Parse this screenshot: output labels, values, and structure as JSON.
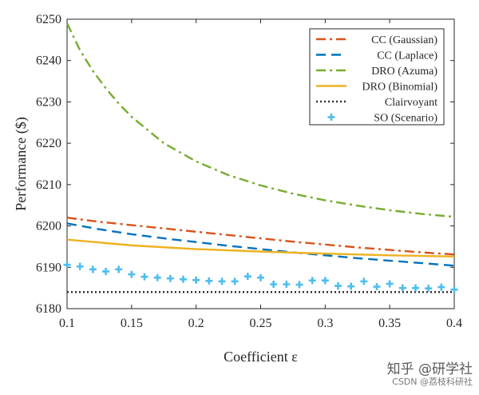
{
  "chart_data": {
    "type": "line",
    "title": "",
    "xlabel": "Coefficient ε",
    "ylabel": "Performance ($)",
    "xlim": [
      0.1,
      0.4
    ],
    "ylim": [
      6180,
      6250
    ],
    "xticks": [
      0.1,
      0.15,
      0.2,
      0.25,
      0.3,
      0.35,
      0.4
    ],
    "xtick_labels": [
      "0.1",
      "0.15",
      "0.2",
      "0.25",
      "0.3",
      "0.35",
      "0.4"
    ],
    "yticks": [
      6180,
      6190,
      6200,
      6210,
      6220,
      6230,
      6240,
      6250
    ],
    "ytick_labels": [
      "6180",
      "6190",
      "6200",
      "6210",
      "6220",
      "6230",
      "6240",
      "6250"
    ],
    "grid": false,
    "legend_position": "top-right",
    "series": [
      {
        "name": "CC (Gaussian)",
        "kind": "line",
        "color": "#D95319",
        "dash": "dashdot",
        "x": [
          0.1,
          0.125,
          0.15,
          0.175,
          0.2,
          0.225,
          0.25,
          0.275,
          0.3,
          0.325,
          0.35,
          0.375,
          0.4
        ],
        "y": [
          6202.0,
          6201.0,
          6200.2,
          6199.4,
          6198.6,
          6197.8,
          6197.0,
          6196.2,
          6195.5,
          6194.8,
          6194.2,
          6193.6,
          6193.1
        ]
      },
      {
        "name": "CC (Laplace)",
        "kind": "line",
        "color": "#0072BD",
        "dash": "dash",
        "x": [
          0.1,
          0.125,
          0.15,
          0.175,
          0.2,
          0.225,
          0.25,
          0.275,
          0.3,
          0.325,
          0.35,
          0.375,
          0.4
        ],
        "y": [
          6200.6,
          6199.2,
          6198.0,
          6197.0,
          6196.1,
          6195.2,
          6194.4,
          6193.6,
          6192.9,
          6192.2,
          6191.6,
          6191.0,
          6190.4
        ]
      },
      {
        "name": "DRO (Azuma)",
        "kind": "line",
        "color": "#77AC30",
        "dash": "dashdot",
        "x": [
          0.1,
          0.11,
          0.12,
          0.13,
          0.14,
          0.15,
          0.175,
          0.2,
          0.225,
          0.25,
          0.275,
          0.3,
          0.325,
          0.35,
          0.375,
          0.4
        ],
        "y": [
          6249.0,
          6242.5,
          6237.5,
          6233.3,
          6229.6,
          6226.4,
          6220.0,
          6215.6,
          6212.3,
          6209.8,
          6207.8,
          6206.2,
          6204.9,
          6203.8,
          6202.9,
          6202.2
        ]
      },
      {
        "name": "DRO (Binomial)",
        "kind": "line",
        "color": "#EDB120",
        "dash": "solid",
        "x": [
          0.1,
          0.15,
          0.2,
          0.25,
          0.3,
          0.35,
          0.4
        ],
        "y": [
          6196.7,
          6195.3,
          6194.4,
          6193.8,
          6193.3,
          6192.9,
          6192.6
        ]
      },
      {
        "name": "Clairvoyant",
        "kind": "line",
        "color": "#333333",
        "dash": "dot",
        "x": [
          0.1,
          0.4
        ],
        "y": [
          6184.0,
          6184.0
        ]
      },
      {
        "name": "SO (Scenario)",
        "kind": "scatter",
        "color": "#4DBEEE",
        "marker": "plus",
        "x": [
          0.1,
          0.11,
          0.12,
          0.13,
          0.14,
          0.15,
          0.16,
          0.17,
          0.18,
          0.19,
          0.2,
          0.21,
          0.22,
          0.23,
          0.24,
          0.25,
          0.26,
          0.27,
          0.28,
          0.29,
          0.3,
          0.31,
          0.32,
          0.33,
          0.34,
          0.35,
          0.36,
          0.37,
          0.38,
          0.39,
          0.4
        ],
        "y": [
          6190.6,
          6190.2,
          6189.5,
          6189.0,
          6189.5,
          6188.3,
          6187.7,
          6187.5,
          6187.3,
          6187.1,
          6186.9,
          6186.7,
          6186.6,
          6186.6,
          6187.8,
          6187.5,
          6185.9,
          6185.9,
          6185.8,
          6186.8,
          6186.8,
          6185.5,
          6185.4,
          6186.6,
          6185.3,
          6186.0,
          6185.0,
          6185.0,
          6184.9,
          6185.2,
          6184.6
        ]
      }
    ]
  },
  "watermark": {
    "main": "知乎 @研学社",
    "sub": "CSDN @荔枝科研社"
  }
}
